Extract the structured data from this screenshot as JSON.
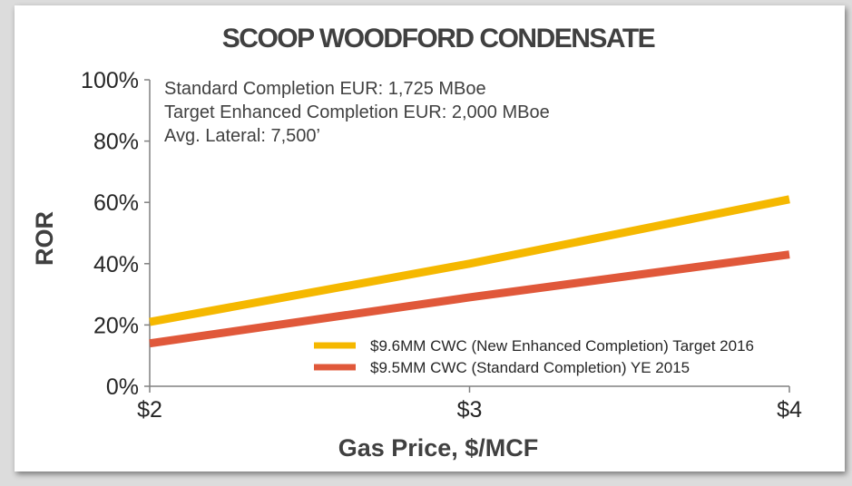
{
  "chart_data": {
    "type": "line",
    "title": "SCOOP WOODFORD CONDENSATE",
    "xlabel": "Gas Price, $/MCF",
    "ylabel": "ROR",
    "x": [
      2,
      3,
      4
    ],
    "x_tick_labels": [
      "$2",
      "$3",
      "$4"
    ],
    "xlim": [
      2,
      4
    ],
    "ylim": [
      0,
      100
    ],
    "y_ticks": [
      0,
      20,
      40,
      60,
      80,
      100
    ],
    "y_tick_labels": [
      "0%",
      "20%",
      "40%",
      "60%",
      "80%",
      "100%"
    ],
    "grid": false,
    "legend_position": "bottom-right",
    "annotations": [
      "Standard Completion EUR: 1,725 MBoe",
      "Target Enhanced Completion EUR: 2,000 MBoe",
      "Avg. Lateral: 7,500’"
    ],
    "series": [
      {
        "name": "$9.6MM CWC (New Enhanced Completion) Target 2016",
        "color": "#f5b800",
        "values": [
          21,
          40,
          61
        ]
      },
      {
        "name": "$9.5MM CWC (Standard Completion) YE 2015",
        "color": "#e0583a",
        "values": [
          14,
          29,
          43
        ]
      }
    ]
  }
}
